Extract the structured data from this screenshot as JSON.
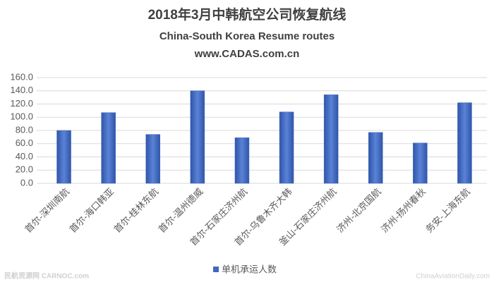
{
  "chart_data": {
    "type": "bar",
    "title": "2018年3月中韩航空公司恢复航线",
    "subtitle": "China-South Korea Resume routes",
    "source": "www.CADAS.com.cn",
    "categories": [
      "首尔-深圳南航",
      "首尔-海口韩亚",
      "首尔-桂林东航",
      "首尔-温州德威",
      "首尔-石家庄济州航",
      "首尔-乌鲁木齐大韩",
      "釜山-石家庄济州航",
      "济州-北京国航",
      "济州-扬州春秋",
      "务安-上海东航"
    ],
    "series": [
      {
        "name": "单机承运人数",
        "color": "#4169bd",
        "values": [
          80,
          107,
          74,
          140,
          69,
          108,
          134,
          77,
          61,
          122
        ]
      }
    ],
    "ylim": [
      0,
      160
    ],
    "yticks": [
      {
        "value": 0,
        "label": "0.0"
      },
      {
        "value": 20,
        "label": "20.0"
      },
      {
        "value": 40,
        "label": "40.0"
      },
      {
        "value": 60,
        "label": "60.0"
      },
      {
        "value": 80,
        "label": "80.0"
      },
      {
        "value": 100,
        "label": "100.0"
      },
      {
        "value": 120,
        "label": "120.0"
      },
      {
        "value": 140,
        "label": "140.0"
      },
      {
        "value": 160,
        "label": "160.0"
      }
    ],
    "grid": true,
    "legend": "bottom",
    "watermarks": [
      "民航资源网 CARNOC.com",
      "ChinaAviationDaily.com"
    ]
  }
}
